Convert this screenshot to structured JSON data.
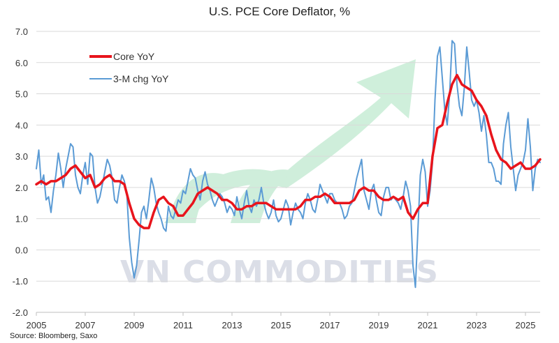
{
  "chart_data": {
    "type": "line",
    "title": "U.S. PCE Core Deflator, %",
    "source": "Source: Bloomberg, Saxo",
    "watermark": "VN COMMODITIES",
    "x_range": [
      2005.0,
      2025.6
    ],
    "ylim": [
      -2.0,
      7.0
    ],
    "y_ticks": [
      "7.0",
      "6.0",
      "5.0",
      "4.0",
      "3.0",
      "2.0",
      "1.0",
      "0.0",
      "-1.0",
      "-2.0"
    ],
    "x_ticks": [
      "2005",
      "2007",
      "2009",
      "2011",
      "2013",
      "2015",
      "2017",
      "2019",
      "2021",
      "2023",
      "2025"
    ],
    "grid": true,
    "legend_position": "top-left",
    "colors": {
      "core": "#e8141c",
      "chg": "#5b9bd5",
      "arrow": "#bfe9cf"
    },
    "series": [
      {
        "name": "Core YoY",
        "x": [
          2005.0,
          2005.2,
          2005.4,
          2005.6,
          2005.8,
          2006.0,
          2006.2,
          2006.4,
          2006.6,
          2006.8,
          2007.0,
          2007.2,
          2007.4,
          2007.6,
          2007.8,
          2008.0,
          2008.2,
          2008.4,
          2008.6,
          2008.8,
          2009.0,
          2009.2,
          2009.4,
          2009.6,
          2009.8,
          2010.0,
          2010.2,
          2010.4,
          2010.6,
          2010.8,
          2011.0,
          2011.2,
          2011.4,
          2011.6,
          2011.8,
          2012.0,
          2012.2,
          2012.4,
          2012.6,
          2012.8,
          2013.0,
          2013.2,
          2013.4,
          2013.6,
          2013.8,
          2014.0,
          2014.2,
          2014.4,
          2014.6,
          2014.8,
          2015.0,
          2015.2,
          2015.4,
          2015.6,
          2015.8,
          2016.0,
          2016.2,
          2016.4,
          2016.6,
          2016.8,
          2017.0,
          2017.2,
          2017.4,
          2017.6,
          2017.8,
          2018.0,
          2018.2,
          2018.4,
          2018.6,
          2018.8,
          2019.0,
          2019.2,
          2019.4,
          2019.6,
          2019.8,
          2020.0,
          2020.2,
          2020.4,
          2020.6,
          2020.8,
          2021.0,
          2021.2,
          2021.4,
          2021.6,
          2021.8,
          2022.0,
          2022.2,
          2022.4,
          2022.6,
          2022.8,
          2023.0,
          2023.2,
          2023.4,
          2023.6,
          2023.8,
          2024.0,
          2024.2,
          2024.4,
          2024.6,
          2024.8,
          2025.0,
          2025.2,
          2025.4,
          2025.6
        ],
        "values": [
          2.1,
          2.2,
          2.1,
          2.2,
          2.2,
          2.3,
          2.4,
          2.6,
          2.7,
          2.5,
          2.3,
          2.4,
          2.0,
          2.1,
          2.3,
          2.4,
          2.2,
          2.2,
          2.1,
          1.5,
          1.0,
          0.8,
          0.7,
          0.7,
          1.2,
          1.6,
          1.7,
          1.5,
          1.4,
          1.1,
          1.1,
          1.3,
          1.5,
          1.8,
          1.9,
          2.0,
          1.9,
          1.8,
          1.6,
          1.6,
          1.5,
          1.3,
          1.3,
          1.4,
          1.4,
          1.5,
          1.5,
          1.5,
          1.4,
          1.3,
          1.3,
          1.3,
          1.3,
          1.3,
          1.4,
          1.6,
          1.6,
          1.7,
          1.7,
          1.8,
          1.7,
          1.5,
          1.5,
          1.5,
          1.5,
          1.6,
          1.9,
          2.0,
          1.9,
          1.9,
          1.7,
          1.6,
          1.6,
          1.7,
          1.6,
          1.7,
          1.2,
          1.0,
          1.3,
          1.5,
          1.5,
          3.0,
          3.9,
          4.0,
          4.7,
          5.3,
          5.6,
          5.3,
          5.2,
          5.1,
          4.8,
          4.6,
          4.3,
          3.7,
          3.2,
          2.9,
          2.8,
          2.6,
          2.7,
          2.8,
          2.6,
          2.6,
          2.7,
          2.9
        ]
      },
      {
        "name": "3-M chg YoY",
        "x": [
          2005.0,
          2005.1,
          2005.2,
          2005.3,
          2005.4,
          2005.5,
          2005.6,
          2005.7,
          2005.8,
          2005.9,
          2006.0,
          2006.1,
          2006.2,
          2006.3,
          2006.4,
          2006.5,
          2006.6,
          2006.7,
          2006.8,
          2006.9,
          2007.0,
          2007.1,
          2007.2,
          2007.3,
          2007.4,
          2007.5,
          2007.6,
          2007.7,
          2007.8,
          2007.9,
          2008.0,
          2008.1,
          2008.2,
          2008.3,
          2008.4,
          2008.5,
          2008.6,
          2008.7,
          2008.8,
          2008.9,
          2009.0,
          2009.1,
          2009.2,
          2009.3,
          2009.4,
          2009.5,
          2009.6,
          2009.7,
          2009.8,
          2009.9,
          2010.0,
          2010.1,
          2010.2,
          2010.3,
          2010.4,
          2010.5,
          2010.6,
          2010.7,
          2010.8,
          2010.9,
          2011.0,
          2011.1,
          2011.2,
          2011.3,
          2011.4,
          2011.5,
          2011.6,
          2011.7,
          2011.8,
          2011.9,
          2012.0,
          2012.1,
          2012.2,
          2012.3,
          2012.4,
          2012.5,
          2012.6,
          2012.7,
          2012.8,
          2012.9,
          2013.0,
          2013.1,
          2013.2,
          2013.3,
          2013.4,
          2013.5,
          2013.6,
          2013.7,
          2013.8,
          2013.9,
          2014.0,
          2014.1,
          2014.2,
          2014.3,
          2014.4,
          2014.5,
          2014.6,
          2014.7,
          2014.8,
          2014.9,
          2015.0,
          2015.1,
          2015.2,
          2015.3,
          2015.4,
          2015.5,
          2015.6,
          2015.7,
          2015.8,
          2015.9,
          2016.0,
          2016.1,
          2016.2,
          2016.3,
          2016.4,
          2016.5,
          2016.6,
          2016.7,
          2016.8,
          2016.9,
          2017.0,
          2017.1,
          2017.2,
          2017.3,
          2017.4,
          2017.5,
          2017.6,
          2017.7,
          2017.8,
          2017.9,
          2018.0,
          2018.1,
          2018.2,
          2018.3,
          2018.4,
          2018.5,
          2018.6,
          2018.7,
          2018.8,
          2018.9,
          2019.0,
          2019.1,
          2019.2,
          2019.3,
          2019.4,
          2019.5,
          2019.6,
          2019.7,
          2019.8,
          2019.9,
          2020.0,
          2020.1,
          2020.2,
          2020.3,
          2020.4,
          2020.5,
          2020.6,
          2020.7,
          2020.8,
          2020.9,
          2021.0,
          2021.1,
          2021.2,
          2021.3,
          2021.4,
          2021.5,
          2021.6,
          2021.7,
          2021.8,
          2021.9,
          2022.0,
          2022.1,
          2022.2,
          2022.3,
          2022.4,
          2022.5,
          2022.6,
          2022.7,
          2022.8,
          2022.9,
          2023.0,
          2023.1,
          2023.2,
          2023.3,
          2023.4,
          2023.5,
          2023.6,
          2023.7,
          2023.8,
          2023.9,
          2024.0,
          2024.1,
          2024.2,
          2024.3,
          2024.4,
          2024.5,
          2024.6,
          2024.7,
          2024.8,
          2024.9,
          2025.0,
          2025.1,
          2025.2,
          2025.3,
          2025.4,
          2025.5,
          2025.6
        ],
        "values": [
          2.6,
          3.2,
          2.1,
          2.4,
          1.6,
          1.7,
          1.2,
          1.9,
          2.4,
          3.1,
          2.6,
          2.0,
          2.6,
          3.0,
          3.4,
          3.3,
          2.4,
          2.0,
          1.8,
          2.4,
          2.8,
          2.1,
          3.1,
          3.0,
          2.0,
          1.5,
          1.7,
          2.1,
          2.5,
          2.9,
          2.7,
          2.3,
          1.6,
          1.5,
          2.0,
          2.4,
          2.2,
          1.8,
          0.4,
          -0.4,
          -0.9,
          -0.5,
          0.3,
          1.2,
          1.4,
          1.0,
          1.6,
          2.3,
          2.0,
          1.5,
          1.2,
          1.0,
          0.7,
          0.6,
          1.4,
          1.1,
          1.0,
          1.3,
          1.6,
          1.5,
          1.9,
          1.8,
          2.2,
          2.6,
          2.4,
          2.3,
          1.9,
          1.6,
          2.2,
          2.5,
          2.1,
          1.9,
          1.6,
          1.4,
          1.6,
          1.8,
          1.7,
          1.5,
          1.2,
          1.4,
          1.3,
          1.1,
          1.7,
          1.3,
          1.0,
          1.5,
          1.9,
          1.4,
          1.2,
          1.6,
          1.4,
          1.6,
          2.0,
          1.5,
          1.2,
          1.0,
          1.2,
          1.6,
          1.1,
          0.9,
          1.0,
          1.3,
          1.6,
          1.4,
          0.8,
          1.2,
          1.5,
          1.3,
          1.2,
          1.0,
          1.5,
          1.8,
          1.6,
          1.3,
          1.2,
          1.6,
          2.1,
          1.9,
          1.7,
          1.5,
          1.8,
          1.8,
          1.6,
          1.5,
          1.5,
          1.3,
          1.0,
          1.1,
          1.4,
          1.5,
          1.9,
          2.3,
          2.6,
          2.9,
          1.9,
          1.6,
          1.3,
          1.9,
          2.1,
          1.6,
          1.2,
          1.1,
          1.7,
          2.0,
          2.0,
          1.6,
          1.7,
          1.6,
          1.5,
          1.3,
          1.7,
          2.2,
          1.9,
          1.4,
          -0.5,
          -1.2,
          0.6,
          2.4,
          2.9,
          2.5,
          1.4,
          1.9,
          2.8,
          4.8,
          6.2,
          6.5,
          5.5,
          4.5,
          4.0,
          5.0,
          6.7,
          6.6,
          5.3,
          4.6,
          4.3,
          5.2,
          6.5,
          5.7,
          4.8,
          4.6,
          4.8,
          4.4,
          3.8,
          4.3,
          3.7,
          2.8,
          2.8,
          2.6,
          2.2,
          2.2,
          2.1,
          3.4,
          4.0,
          4.4,
          3.3,
          2.6,
          1.9,
          2.4,
          2.6,
          2.8,
          3.2,
          4.2,
          3.3,
          1.9,
          2.6,
          2.9,
          2.8
        ]
      }
    ]
  }
}
